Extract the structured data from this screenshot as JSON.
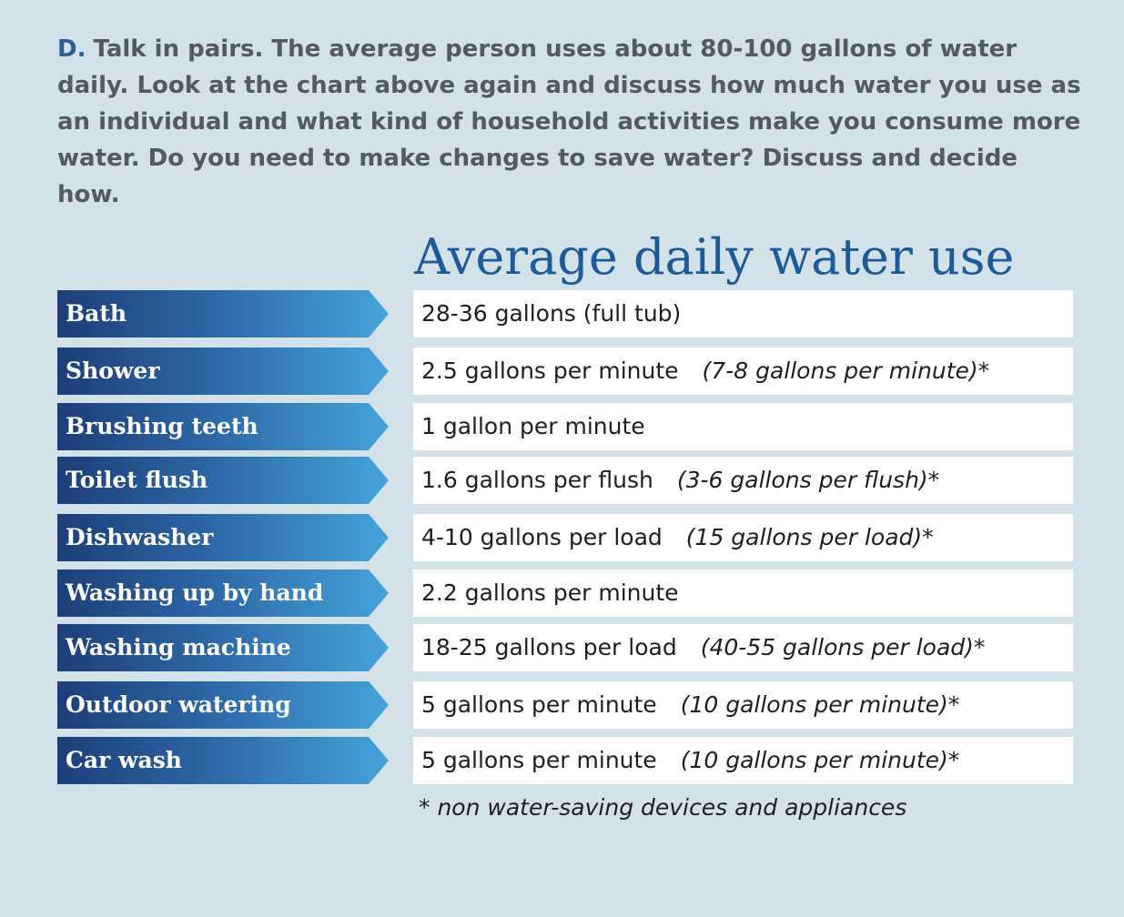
{
  "instruction": {
    "letter": "D.",
    "text": "Talk in pairs. The average person uses about 80-100 gallons of water daily. Look at the chart above again and discuss how much water you use as an individual and what kind of household activities make you consume more water. Do you need to make changes to save water? Discuss and decide how."
  },
  "chart": {
    "title": "Average daily water use",
    "rows": [
      {
        "activity": "Bath",
        "value": "28-36 gallons (full tub)",
        "alt": ""
      },
      {
        "activity": "Shower",
        "value": "2.5 gallons per minute",
        "alt": "(7-8 gallons per minute)*"
      },
      {
        "activity": "Brushing teeth",
        "value": "1 gallon per minute",
        "alt": ""
      },
      {
        "activity": "Toilet flush",
        "value": "1.6 gallons per flush",
        "alt": "(3-6 gallons per flush)*"
      },
      {
        "activity": "Dishwasher",
        "value": "4-10 gallons per load",
        "alt": "(15 gallons per load)*"
      },
      {
        "activity": "Washing up by hand",
        "value": "2.2 gallons per minute",
        "alt": ""
      },
      {
        "activity": "Washing machine",
        "value": "18-25 gallons per load",
        "alt": "(40-55 gallons per load)*"
      },
      {
        "activity": "Outdoor watering",
        "value": "5 gallons per minute",
        "alt": "(10 gallons per minute)*"
      },
      {
        "activity": "Car wash",
        "value": "5 gallons per minute",
        "alt": "(10 gallons per minute)*"
      }
    ],
    "footnote": "* non water-saving devices and appliances"
  },
  "colors": {
    "background": "#d3e1e9",
    "title": "#1d5a99",
    "label_gradient_start": "#1d3e79",
    "label_gradient_end": "#45a4d9",
    "instruction_text": "#555a5e"
  }
}
